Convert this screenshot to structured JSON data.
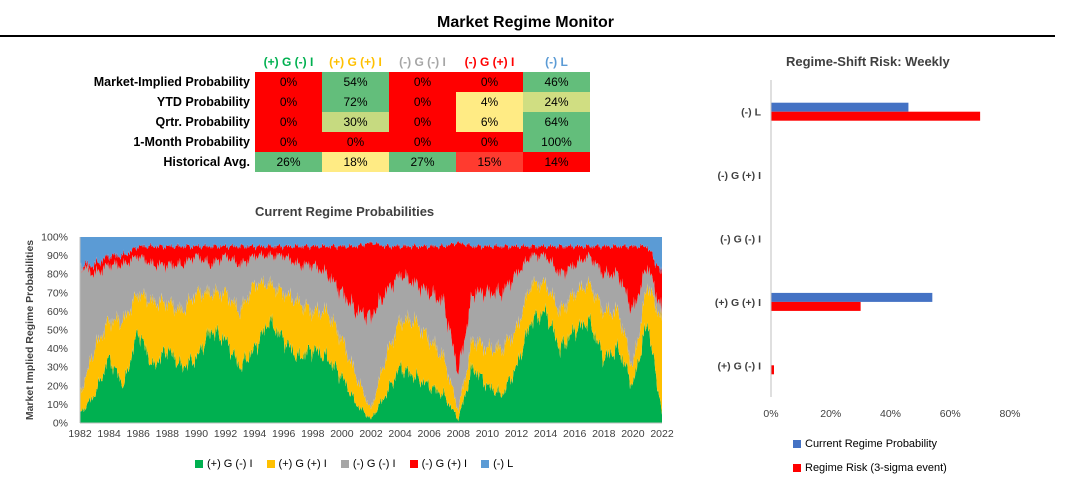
{
  "title": "Market Regime Monitor",
  "table": {
    "headers": [
      {
        "label": "(+) G (-) I",
        "color": "#00b050"
      },
      {
        "label": "(+) G (+) I",
        "color": "#ffc000"
      },
      {
        "label": "(-) G (-) I",
        "color": "#a6a6a6"
      },
      {
        "label": "(-) G (+) I",
        "color": "#ff0000"
      },
      {
        "label": "(-) L",
        "color": "#5b9bd5"
      }
    ],
    "rows": [
      {
        "label": "Market-Implied Probability",
        "values": [
          "0%",
          "54%",
          "0%",
          "0%",
          "46%"
        ],
        "colors": [
          "#ff0000",
          "#63be7b",
          "#ff0000",
          "#ff0000",
          "#63be7b"
        ]
      },
      {
        "label": "YTD Probability",
        "values": [
          "0%",
          "72%",
          "0%",
          "4%",
          "24%"
        ],
        "colors": [
          "#ff0000",
          "#63be7b",
          "#ff0000",
          "#ffeb84",
          "#d0de82"
        ]
      },
      {
        "label": "Qrtr. Probability",
        "values": [
          "0%",
          "30%",
          "0%",
          "6%",
          "64%"
        ],
        "colors": [
          "#ff0000",
          "#c6da80",
          "#ff0000",
          "#ffeb84",
          "#63be7b"
        ]
      },
      {
        "label": "1-Month Probability",
        "values": [
          "0%",
          "0%",
          "0%",
          "0%",
          "100%"
        ],
        "colors": [
          "#ff0000",
          "#ff0000",
          "#ff0000",
          "#ff0000",
          "#63be7b"
        ]
      },
      {
        "label": "Historical Avg.",
        "values": [
          "26%",
          "18%",
          "27%",
          "15%",
          "14%"
        ],
        "colors": [
          "#63be7b",
          "#ffeb84",
          "#63be7b",
          "#ff3b2f",
          "#ff0000"
        ]
      }
    ]
  },
  "area_chart": {
    "title": "Current Regime Probabilities",
    "ylabel": "Market Implied Regime Probabilities",
    "yticks": [
      "0%",
      "10%",
      "20%",
      "30%",
      "40%",
      "50%",
      "60%",
      "70%",
      "80%",
      "90%",
      "100%"
    ],
    "xticks": [
      "1982",
      "1984",
      "1986",
      "1988",
      "1990",
      "1992",
      "1994",
      "1996",
      "1998",
      "2000",
      "2002",
      "2004",
      "2006",
      "2008",
      "2010",
      "2012",
      "2014",
      "2016",
      "2018",
      "2020",
      "2022"
    ]
  },
  "bar_chart": {
    "title": "Regime-Shift Risk: Weekly",
    "categories": [
      "(-) L",
      "(-) G (+) I",
      "(-) G (-) I",
      "(+) G (+) I",
      "(+) G (-) I"
    ],
    "xticks": [
      "0%",
      "20%",
      "40%",
      "60%",
      "80%"
    ],
    "legend": [
      "Current Regime Probability",
      "Regime Risk (3-sigma event)"
    ]
  },
  "colors": {
    "g_plus_i_minus": "#00b050",
    "g_plus_i_plus": "#ffc000",
    "g_minus_i_minus": "#a6a6a6",
    "g_minus_i_plus": "#ff0000",
    "liquidity": "#5b9bd5",
    "current_bar": "#4472c4",
    "risk_bar": "#ff0000"
  },
  "chart_data": [
    {
      "type": "area",
      "title": "Current Regime Probabilities",
      "ylabel": "Market Implied Regime Probabilities",
      "ylim": [
        0,
        1
      ],
      "x": [
        1982,
        1983,
        1984,
        1985,
        1986,
        1987,
        1988,
        1989,
        1990,
        1991,
        1992,
        1993,
        1994,
        1995,
        1996,
        1997,
        1998,
        1999,
        2000,
        2001,
        2002,
        2003,
        2004,
        2005,
        2006,
        2007,
        2008,
        2009,
        2010,
        2011,
        2012,
        2013,
        2014,
        2015,
        2016,
        2017,
        2018,
        2019,
        2020,
        2021,
        2022
      ],
      "series": [
        {
          "name": "(+) G (-) I",
          "values": [
            0.05,
            0.15,
            0.35,
            0.2,
            0.5,
            0.3,
            0.4,
            0.3,
            0.35,
            0.5,
            0.45,
            0.3,
            0.4,
            0.55,
            0.45,
            0.35,
            0.4,
            0.35,
            0.25,
            0.1,
            0.02,
            0.15,
            0.3,
            0.25,
            0.2,
            0.15,
            0.02,
            0.3,
            0.2,
            0.15,
            0.3,
            0.55,
            0.6,
            0.4,
            0.5,
            0.55,
            0.35,
            0.4,
            0.2,
            0.55,
            0.05
          ]
        },
        {
          "name": "(+) G (+) I",
          "values": [
            0.1,
            0.25,
            0.2,
            0.35,
            0.2,
            0.35,
            0.25,
            0.3,
            0.35,
            0.2,
            0.25,
            0.3,
            0.35,
            0.2,
            0.25,
            0.3,
            0.2,
            0.25,
            0.2,
            0.15,
            0.05,
            0.2,
            0.25,
            0.3,
            0.25,
            0.2,
            0.05,
            0.15,
            0.2,
            0.25,
            0.2,
            0.2,
            0.15,
            0.2,
            0.2,
            0.2,
            0.25,
            0.2,
            0.1,
            0.2,
            0.5
          ]
        },
        {
          "name": "(-) G (-) I",
          "values": [
            0.7,
            0.4,
            0.3,
            0.3,
            0.2,
            0.2,
            0.2,
            0.25,
            0.2,
            0.15,
            0.2,
            0.25,
            0.15,
            0.15,
            0.2,
            0.2,
            0.25,
            0.2,
            0.25,
            0.35,
            0.5,
            0.35,
            0.25,
            0.2,
            0.25,
            0.3,
            0.2,
            0.25,
            0.3,
            0.3,
            0.3,
            0.15,
            0.15,
            0.2,
            0.15,
            0.15,
            0.2,
            0.2,
            0.3,
            0.1,
            0.05
          ]
        },
        {
          "name": "(-) G (+) I",
          "values": [
            0.0,
            0.05,
            0.05,
            0.05,
            0.05,
            0.1,
            0.1,
            0.1,
            0.05,
            0.1,
            0.05,
            0.1,
            0.05,
            0.05,
            0.05,
            0.1,
            0.1,
            0.15,
            0.25,
            0.35,
            0.4,
            0.25,
            0.15,
            0.2,
            0.25,
            0.3,
            0.7,
            0.25,
            0.25,
            0.25,
            0.15,
            0.05,
            0.05,
            0.15,
            0.1,
            0.05,
            0.15,
            0.15,
            0.35,
            0.1,
            0.2
          ]
        },
        {
          "name": "(-) L",
          "values": [
            0.15,
            0.15,
            0.1,
            0.1,
            0.05,
            0.05,
            0.05,
            0.05,
            0.05,
            0.05,
            0.05,
            0.05,
            0.05,
            0.05,
            0.05,
            0.05,
            0.05,
            0.05,
            0.05,
            0.05,
            0.03,
            0.05,
            0.05,
            0.05,
            0.05,
            0.05,
            0.03,
            0.05,
            0.05,
            0.05,
            0.05,
            0.05,
            0.05,
            0.05,
            0.05,
            0.05,
            0.05,
            0.05,
            0.05,
            0.05,
            0.2
          ]
        }
      ]
    },
    {
      "type": "bar",
      "orientation": "horizontal",
      "title": "Regime-Shift Risk: Weekly",
      "categories": [
        "(-) L",
        "(-) G (+) I",
        "(-) G (-) I",
        "(+) G (+) I",
        "(+) G (-) I"
      ],
      "xlim": [
        0,
        0.8
      ],
      "series": [
        {
          "name": "Current Regime Probability",
          "values": [
            0.46,
            0,
            0,
            0.54,
            0
          ]
        },
        {
          "name": "Regime Risk (3-sigma event)",
          "values": [
            0.7,
            0,
            0,
            0.3,
            0.01
          ]
        }
      ]
    }
  ]
}
